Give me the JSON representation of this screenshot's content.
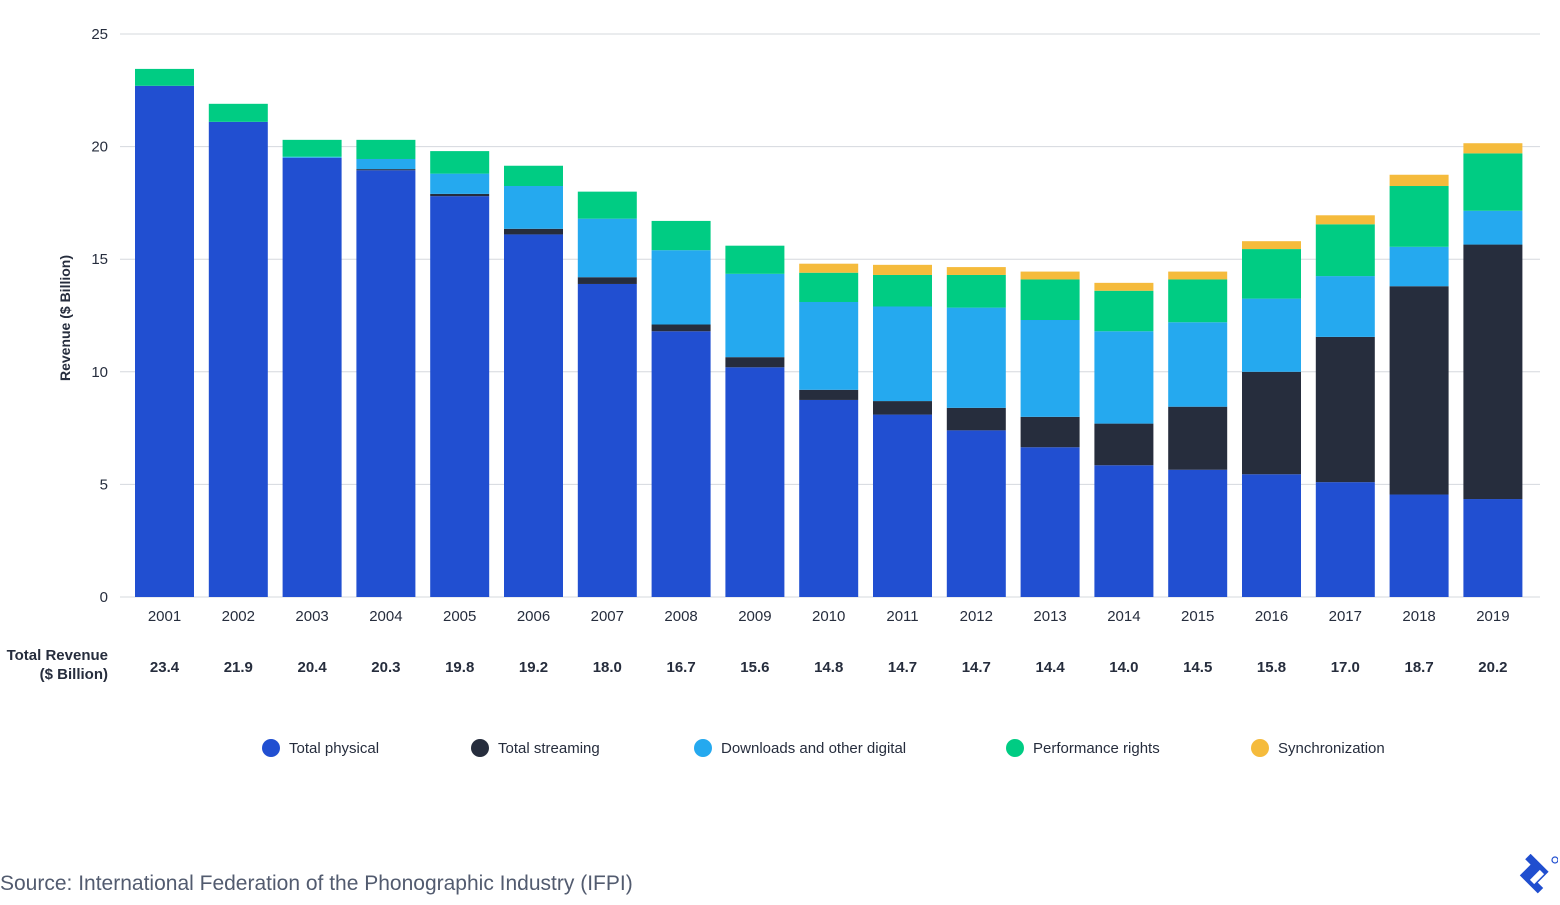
{
  "chart_data": {
    "type": "bar",
    "stacked": true,
    "title": "",
    "xlabel": "",
    "ylabel": "Revenue ($ Billion)",
    "ylim": [
      0,
      25
    ],
    "yticks": [
      0,
      5,
      10,
      15,
      20,
      25
    ],
    "grid": true,
    "legend_position": "bottom",
    "categories": [
      "2001",
      "2002",
      "2003",
      "2004",
      "2005",
      "2006",
      "2007",
      "2008",
      "2009",
      "2010",
      "2011",
      "2012",
      "2013",
      "2014",
      "2015",
      "2016",
      "2017",
      "2018",
      "2019"
    ],
    "series": [
      {
        "name": "Total physical",
        "color": "#214fd1",
        "values": [
          22.7,
          21.1,
          19.5,
          18.95,
          17.8,
          16.1,
          13.9,
          11.8,
          10.2,
          8.75,
          8.1,
          7.4,
          6.65,
          5.85,
          5.65,
          5.45,
          5.1,
          4.55,
          4.35
        ]
      },
      {
        "name": "Total streaming",
        "color": "#262d3d",
        "values": [
          0,
          0,
          0,
          0.05,
          0.1,
          0.25,
          0.3,
          0.3,
          0.45,
          0.45,
          0.6,
          1.0,
          1.35,
          1.85,
          2.8,
          4.55,
          6.45,
          9.25,
          11.3
        ]
      },
      {
        "name": "Downloads and other digital",
        "color": "#25a9ef",
        "values": [
          0,
          0,
          0.05,
          0.45,
          0.9,
          1.9,
          2.6,
          3.3,
          3.7,
          3.9,
          4.2,
          4.45,
          4.3,
          4.1,
          3.75,
          3.25,
          2.7,
          1.75,
          1.5
        ]
      },
      {
        "name": "Performance rights",
        "color": "#00cc83",
        "values": [
          0.75,
          0.8,
          0.75,
          0.85,
          1.0,
          0.9,
          1.2,
          1.3,
          1.25,
          1.3,
          1.4,
          1.45,
          1.8,
          1.8,
          1.9,
          2.2,
          2.3,
          2.7,
          2.55
        ]
      },
      {
        "name": "Synchronization",
        "color": "#f5bb3c",
        "values": [
          0,
          0,
          0,
          0,
          0,
          0,
          0,
          0,
          0,
          0.4,
          0.45,
          0.35,
          0.35,
          0.35,
          0.35,
          0.35,
          0.4,
          0.5,
          0.45
        ]
      }
    ],
    "totals_label": [
      "Total Revenue",
      "($ Billion)"
    ],
    "totals": [
      "23.4",
      "21.9",
      "20.4",
      "20.3",
      "19.8",
      "19.2",
      "18.0",
      "16.7",
      "15.6",
      "14.8",
      "14.7",
      "14.7",
      "14.4",
      "14.0",
      "14.5",
      "15.8",
      "17.0",
      "18.7",
      "20.2"
    ]
  },
  "source": "Source: International Federation of the Phonographic Industry (IFPI)",
  "logo": {
    "name": "toptal-logo",
    "color": "#204ecf"
  }
}
